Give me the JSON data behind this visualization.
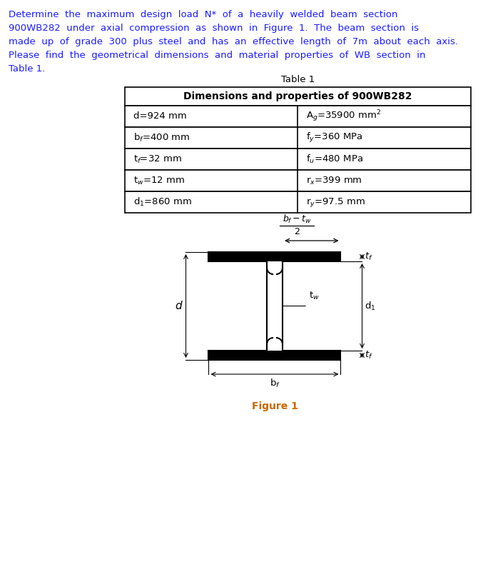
{
  "paragraph_lines": [
    "Determine  the  maximum  design  load  N*  of  a  heavily  welded  beam  section",
    "900WB282  under  axial  compression  as  shown  in  Figure  1.  The  beam  section  is",
    "made  up  of  grade  300  plus  steel  and  has  an  effective  length  of  7m  about  each  axis.",
    "Please  find  the  geometrical  dimensions  and  material  properties  of  WB  section  in",
    "Table 1."
  ],
  "table_title": "Table 1",
  "table_header": "Dimensions and properties of 900WB282",
  "row_left": [
    "d=924 mm",
    "b$_f$=400 mm",
    "t$_f$=32 mm",
    "t$_w$=12 mm",
    "d$_1$=860 mm"
  ],
  "row_right": [
    "A$_g$=35900 mm$^2$",
    "f$_y$=360 MPa",
    "f$_u$=480 MPa",
    "r$_x$=399 mm",
    "r$_y$=97.5 mm"
  ],
  "figure_label": "Figure 1",
  "text_color": "#1a1aff",
  "black": "#000000",
  "figure_label_color": "#cc6600",
  "bg_color": "#ffffff"
}
